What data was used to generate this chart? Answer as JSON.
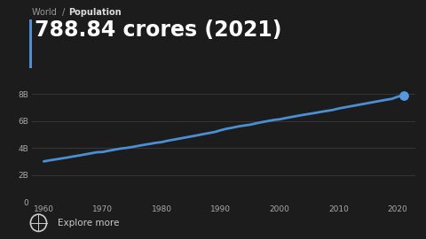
{
  "bg_color": "#1c1c1c",
  "headline": "788.84 crores (2021)",
  "headline_color": "#ffffff",
  "headline_fontsize": 17,
  "accent_bar_color": "#4a90d9",
  "x_years": [
    1960,
    1961,
    1962,
    1963,
    1964,
    1965,
    1966,
    1967,
    1968,
    1969,
    1970,
    1971,
    1972,
    1973,
    1974,
    1975,
    1976,
    1977,
    1978,
    1979,
    1980,
    1981,
    1982,
    1983,
    1984,
    1985,
    1986,
    1987,
    1988,
    1989,
    1990,
    1991,
    1992,
    1993,
    1994,
    1995,
    1996,
    1997,
    1998,
    1999,
    2000,
    2001,
    2002,
    2003,
    2004,
    2005,
    2006,
    2007,
    2008,
    2009,
    2010,
    2011,
    2012,
    2013,
    2014,
    2015,
    2016,
    2017,
    2018,
    2019,
    2020,
    2021
  ],
  "y_billions": [
    3.0,
    3.08,
    3.15,
    3.22,
    3.29,
    3.37,
    3.44,
    3.52,
    3.6,
    3.68,
    3.7,
    3.79,
    3.87,
    3.95,
    4.0,
    4.07,
    4.15,
    4.23,
    4.3,
    4.38,
    4.43,
    4.53,
    4.61,
    4.69,
    4.77,
    4.85,
    4.93,
    5.02,
    5.1,
    5.18,
    5.31,
    5.42,
    5.5,
    5.59,
    5.66,
    5.72,
    5.82,
    5.91,
    5.99,
    6.07,
    6.12,
    6.21,
    6.29,
    6.37,
    6.45,
    6.52,
    6.59,
    6.67,
    6.74,
    6.81,
    6.92,
    7.0,
    7.08,
    7.16,
    7.24,
    7.32,
    7.4,
    7.48,
    7.56,
    7.63,
    7.79,
    7.89
  ],
  "line_color": "#4a8fd4",
  "dot_color": "#5599e0",
  "dot_size": 45,
  "yticks": [
    0,
    2,
    4,
    6,
    8
  ],
  "ytick_labels": [
    "0",
    "2B",
    "4B",
    "6B",
    "8B"
  ],
  "xticks": [
    1960,
    1970,
    1980,
    1990,
    2000,
    2010,
    2020
  ],
  "xtick_labels": [
    "1960",
    "1970",
    "1980",
    "1990",
    "2000",
    "2010",
    "2020"
  ],
  "tick_color": "#aaaaaa",
  "grid_color": "#3a3a3a",
  "ylim": [
    0,
    9.2
  ],
  "xlim": [
    1958,
    2023
  ],
  "breadcrumb_plain": "World  /  ",
  "breadcrumb_bold": "Population",
  "breadcrumb_color": "#999999",
  "breadcrumb_bold_color": "#dddddd",
  "explore_text": "Explore more",
  "explore_color": "#cccccc"
}
